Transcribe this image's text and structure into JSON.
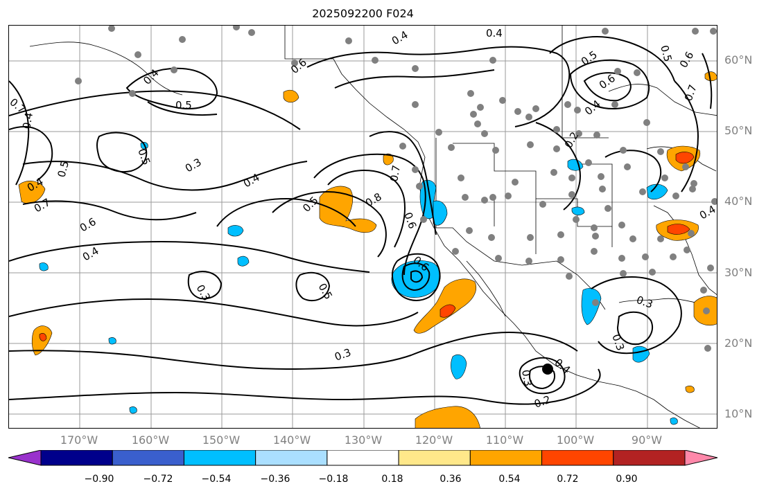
{
  "title": "2025092200 F024",
  "lat_labels": [
    "60°N",
    "50°N",
    "40°N",
    "30°N",
    "20°N",
    "10°N"
  ],
  "lon_labels": [
    "170°W",
    "160°W",
    "150°W",
    "140°W",
    "130°W",
    "120°W",
    "110°W",
    "100°W",
    "90°W"
  ],
  "colorbar": {
    "ticks": [
      "−0.90",
      "−0.72",
      "−0.54",
      "−0.36",
      "−0.18",
      "0.18",
      "0.36",
      "0.54",
      "0.72",
      "0.90"
    ],
    "colors": [
      "#9932cc",
      "#00008b",
      "#3a5fcd",
      "#00bfff",
      "#aadfff",
      "#ffffff",
      "#ffe88a",
      "#ffa500",
      "#ff4500",
      "#b22222",
      "#ff88aa"
    ]
  },
  "contour_labels": [
    "0.4",
    "0.5",
    "0.6",
    "0.7",
    "0.8",
    "0.3",
    "0.2"
  ],
  "colors": {
    "contour": "#000000",
    "grid": "#9a9a9a",
    "station": "#808080",
    "marker": "#000000"
  }
}
